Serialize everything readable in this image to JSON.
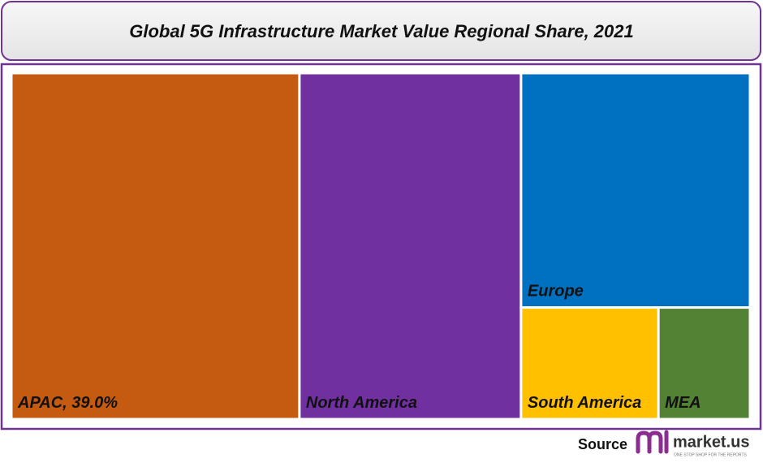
{
  "chart_data": {
    "type": "treemap",
    "title": "Global 5G Infrastructure Market Value Regional Share, 2021",
    "categories": [
      "APAC, 39.0%",
      "North America",
      "Europe",
      "South America",
      "MEA"
    ],
    "values": [
      39.0,
      30,
      21,
      6,
      4
    ],
    "colors": [
      "#c55a11",
      "#7030a0",
      "#0070c0",
      "#ffc000",
      "#548235"
    ]
  },
  "footer": {
    "source": "Source",
    "logo": "market.us",
    "logo_tagline": "ONE STOP SHOP FOR THE REPORTS"
  }
}
